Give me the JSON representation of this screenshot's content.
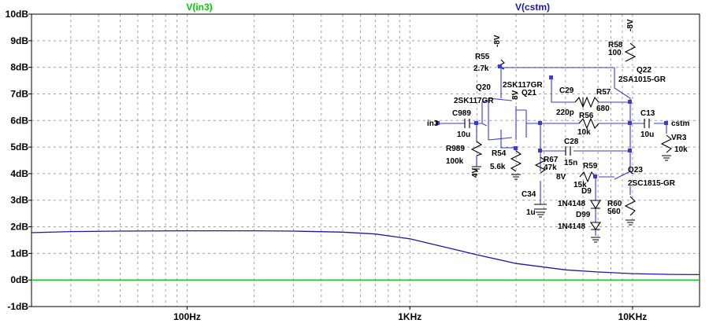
{
  "chart_data": {
    "type": "line",
    "x_scale": "log",
    "xlim": [
      20,
      20000
    ],
    "ylim": [
      -1,
      10
    ],
    "x_unit": "Hz",
    "y_unit": "dB",
    "grid": true,
    "y_ticks": [
      {
        "v": 10,
        "label": "10dB"
      },
      {
        "v": 9,
        "label": "9dB"
      },
      {
        "v": 8,
        "label": "8dB"
      },
      {
        "v": 7,
        "label": "7dB"
      },
      {
        "v": 6,
        "label": "6dB"
      },
      {
        "v": 5,
        "label": "5dB"
      },
      {
        "v": 4,
        "label": "4dB"
      },
      {
        "v": 3,
        "label": "3dB"
      },
      {
        "v": 2,
        "label": "2dB"
      },
      {
        "v": 1,
        "label": "1dB"
      },
      {
        "v": 0,
        "label": "0dB"
      },
      {
        "v": -1,
        "label": "-1dB"
      }
    ],
    "x_ticks": [
      {
        "v": 100,
        "label": "100Hz"
      },
      {
        "v": 1000,
        "label": "1KHz"
      },
      {
        "v": 10000,
        "label": "10KHz"
      }
    ],
    "series": [
      {
        "name": "V(in3)",
        "color": "#00cc00",
        "x": [
          20,
          100,
          1000,
          10000,
          20000
        ],
        "y": [
          0,
          0,
          0,
          0,
          0
        ]
      },
      {
        "name": "V(cstm)",
        "color": "#1a1aa0",
        "x": [
          20,
          30,
          50,
          100,
          200,
          300,
          500,
          700,
          1000,
          1500,
          2000,
          3000,
          5000,
          7000,
          10000,
          15000,
          20000
        ],
        "y": [
          1.78,
          1.82,
          1.84,
          1.85,
          1.85,
          1.84,
          1.8,
          1.73,
          1.55,
          1.2,
          0.95,
          0.62,
          0.38,
          0.3,
          0.24,
          0.21,
          0.2
        ]
      }
    ]
  },
  "schematic": {
    "labels": {
      "r55": "R55",
      "r55v": "2.7k",
      "r55supply": "-8V",
      "r58": "R58",
      "r58v": "100",
      "r58supply": "-8V",
      "q22": "Q22",
      "q22p": "2SA1015-GR",
      "q20": "Q20",
      "q20p": "2SK117GR",
      "q21": "Q21",
      "q21p": "2SK117GR",
      "q21v": "8V",
      "c29": "C29",
      "c29v": "220p",
      "r57": "R57",
      "r57v": "680",
      "r56": "R56",
      "r56v": "10k",
      "c13": "C13",
      "c13v": "10u",
      "in": "in3",
      "out": "cstm",
      "c989": "C989",
      "c989v": "10u",
      "r989": "R989",
      "r989v": "100k",
      "r989supply": "4V",
      "vr3": "VR3",
      "vr3v": "10k",
      "c28": "C28",
      "c28v": "15n",
      "r54": "R54",
      "r54v": "5.6k",
      "r67": "R67",
      "r67v": "47k",
      "r59": "R59",
      "r59v": "15k",
      "r59supply": "8V",
      "q23": "Q23",
      "q23p": "2SC1815-GR",
      "d9": "D9",
      "d9p": "1N4148",
      "d99": "D99",
      "d99p": "1N4148",
      "r60": "R60",
      "r60v": "560",
      "c34": "C34",
      "c34v": "1u"
    }
  }
}
